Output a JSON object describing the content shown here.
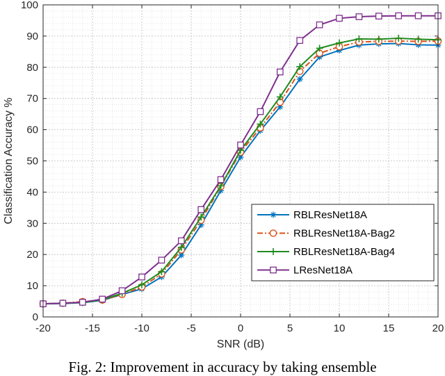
{
  "caption": "Fig. 2: Improvement in accuracy by taking ensemble",
  "chart_data": {
    "type": "line",
    "title": "",
    "xlabel": "SNR (dB)",
    "ylabel": "Classification Accuracy %",
    "xlim": [
      -20,
      20
    ],
    "ylim": [
      0,
      100
    ],
    "xticks": [
      -20,
      -15,
      -10,
      -5,
      0,
      5,
      10,
      15,
      20
    ],
    "yticks": [
      0,
      10,
      20,
      30,
      40,
      50,
      60,
      70,
      80,
      90,
      100
    ],
    "grid": true,
    "minor_grid": true,
    "legend_position": "center-right",
    "x": [
      -20,
      -18,
      -16,
      -14,
      -12,
      -10,
      -8,
      -6,
      -4,
      -2,
      0,
      2,
      4,
      6,
      8,
      10,
      12,
      14,
      16,
      18,
      20
    ],
    "series": [
      {
        "name": "RBLResNet18A",
        "color": "#0072BD",
        "marker": "asterisk",
        "line_style": "solid",
        "values": [
          4.2,
          4.3,
          4.6,
          5.3,
          7.2,
          9.0,
          12.8,
          19.8,
          29.5,
          40.5,
          51.2,
          59.7,
          67.3,
          76.2,
          83.3,
          85.4,
          87.1,
          87.5,
          87.6,
          87.2,
          87.1
        ]
      },
      {
        "name": "RBLResNet18A-Bag2",
        "color": "#D95319",
        "marker": "circle",
        "line_style": "dashdot",
        "values": [
          4.2,
          4.4,
          4.9,
          5.4,
          7.2,
          9.6,
          13.8,
          21.5,
          31.0,
          41.8,
          52.8,
          60.6,
          68.8,
          78.7,
          84.5,
          86.6,
          88.1,
          88.3,
          88.4,
          88.3,
          88.4
        ]
      },
      {
        "name": "RBLResNet18A-Bag4",
        "color": "#1E8C1E",
        "marker": "plus",
        "line_style": "solid",
        "values": [
          4.2,
          4.4,
          4.6,
          5.5,
          7.6,
          10.3,
          14.5,
          22.3,
          32.0,
          42.0,
          53.4,
          61.8,
          70.5,
          80.2,
          86.1,
          87.8,
          89.1,
          89.0,
          89.3,
          89.0,
          88.8
        ]
      },
      {
        "name": "LResNet18A",
        "color": "#7E2F8E",
        "marker": "square",
        "line_style": "solid",
        "values": [
          4.2,
          4.4,
          4.7,
          5.7,
          8.4,
          12.8,
          18.2,
          24.4,
          34.4,
          44.0,
          55.1,
          65.8,
          78.5,
          88.6,
          93.6,
          95.7,
          96.2,
          96.4,
          96.5,
          96.5,
          96.5
        ]
      }
    ]
  }
}
